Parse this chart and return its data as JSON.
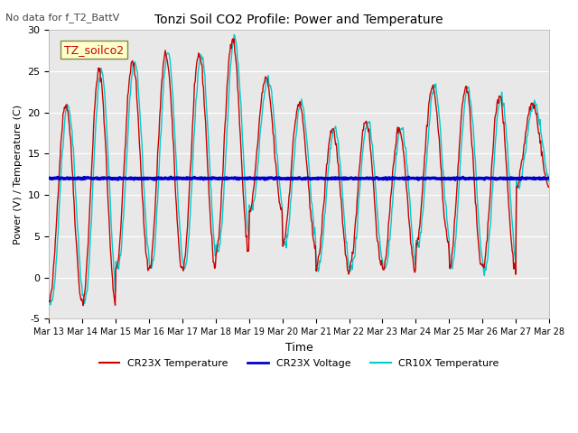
{
  "title": "Tonzi Soil CO2 Profile: Power and Temperature",
  "subtitle": "No data for f_T2_BattV",
  "ylabel": "Power (V) / Temperature (C)",
  "xlabel": "Time",
  "ylim": [
    -5,
    30
  ],
  "plot_bg_color": "#e8e8e8",
  "x_tick_labels": [
    "Mar 13",
    "Mar 14",
    "Mar 15",
    "Mar 16",
    "Mar 17",
    "Mar 18",
    "Mar 19",
    "Mar 20",
    "Mar 21",
    "Mar 22",
    "Mar 23",
    "Mar 24",
    "Mar 25",
    "Mar 26",
    "Mar 27",
    "Mar 28"
  ],
  "legend_labels": [
    "CR23X Temperature",
    "CR23X Voltage",
    "CR10X Temperature"
  ],
  "legend_colors": [
    "#cc0000",
    "#0000cc",
    "#00cccc"
  ],
  "annotation_label": "TZ_soilco2",
  "annotation_color": "#cc0000",
  "annotation_bg": "#ffffcc",
  "voltage_level": 12.0,
  "amp_profile": [
    21,
    25,
    26,
    27,
    27,
    29,
    24,
    21,
    18,
    19,
    18,
    23,
    23,
    22,
    21
  ],
  "min_profile": [
    -3,
    -3,
    1,
    1,
    1,
    3,
    8,
    4,
    1,
    1,
    1,
    4,
    1,
    1,
    11
  ]
}
